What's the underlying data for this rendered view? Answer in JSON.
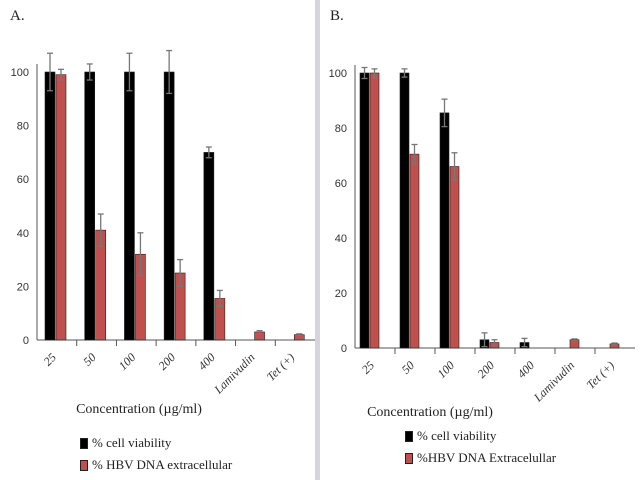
{
  "chart_data": [
    {
      "type": "bar",
      "panel_label": "A.",
      "categories": [
        "25",
        "50",
        "100",
        "200",
        "400",
        "Lamivudin",
        "Tet (+)"
      ],
      "series": [
        {
          "name": "% cell viability",
          "color": "#000000",
          "values": [
            100,
            100,
            100,
            100,
            70,
            null,
            null
          ],
          "errors": [
            7,
            3,
            7,
            8,
            2,
            null,
            null
          ]
        },
        {
          "name": "% HBV DNA extracellular",
          "color": "#c0504d",
          "values": [
            99,
            41,
            32,
            25,
            15.5,
            3,
            2
          ],
          "errors": [
            2,
            6,
            8,
            5,
            3,
            0.5,
            0.3
          ]
        }
      ],
      "xlabel": "Concentration (µg/ml)",
      "ylabel": "",
      "ylim": [
        0,
        100
      ],
      "yticks": [
        0,
        20,
        40,
        60,
        80,
        100
      ],
      "legend_position": "bottom"
    },
    {
      "type": "bar",
      "panel_label": "B.",
      "categories": [
        "25",
        "50",
        "100",
        "200",
        "400",
        "Lamivudin",
        "Tet (+)"
      ],
      "series": [
        {
          "name": "% cell viability",
          "color": "#000000",
          "values": [
            100,
            100,
            85.5,
            3,
            2,
            null,
            null
          ],
          "errors": [
            2,
            1.5,
            5,
            2.5,
            1.5,
            null,
            null
          ]
        },
        {
          "name": "%HBV DNA Extracelullar",
          "color": "#c0504d",
          "values": [
            100,
            70.5,
            66,
            2,
            null,
            3,
            1.5
          ],
          "errors": [
            1.5,
            3.5,
            5,
            1,
            null,
            0.3,
            0.3
          ]
        }
      ],
      "xlabel": "Concentration (µg/ml)",
      "ylabel": "",
      "ylim": [
        0,
        100
      ],
      "yticks": [
        0,
        20,
        40,
        60,
        80,
        100
      ],
      "legend_position": "bottom"
    }
  ]
}
